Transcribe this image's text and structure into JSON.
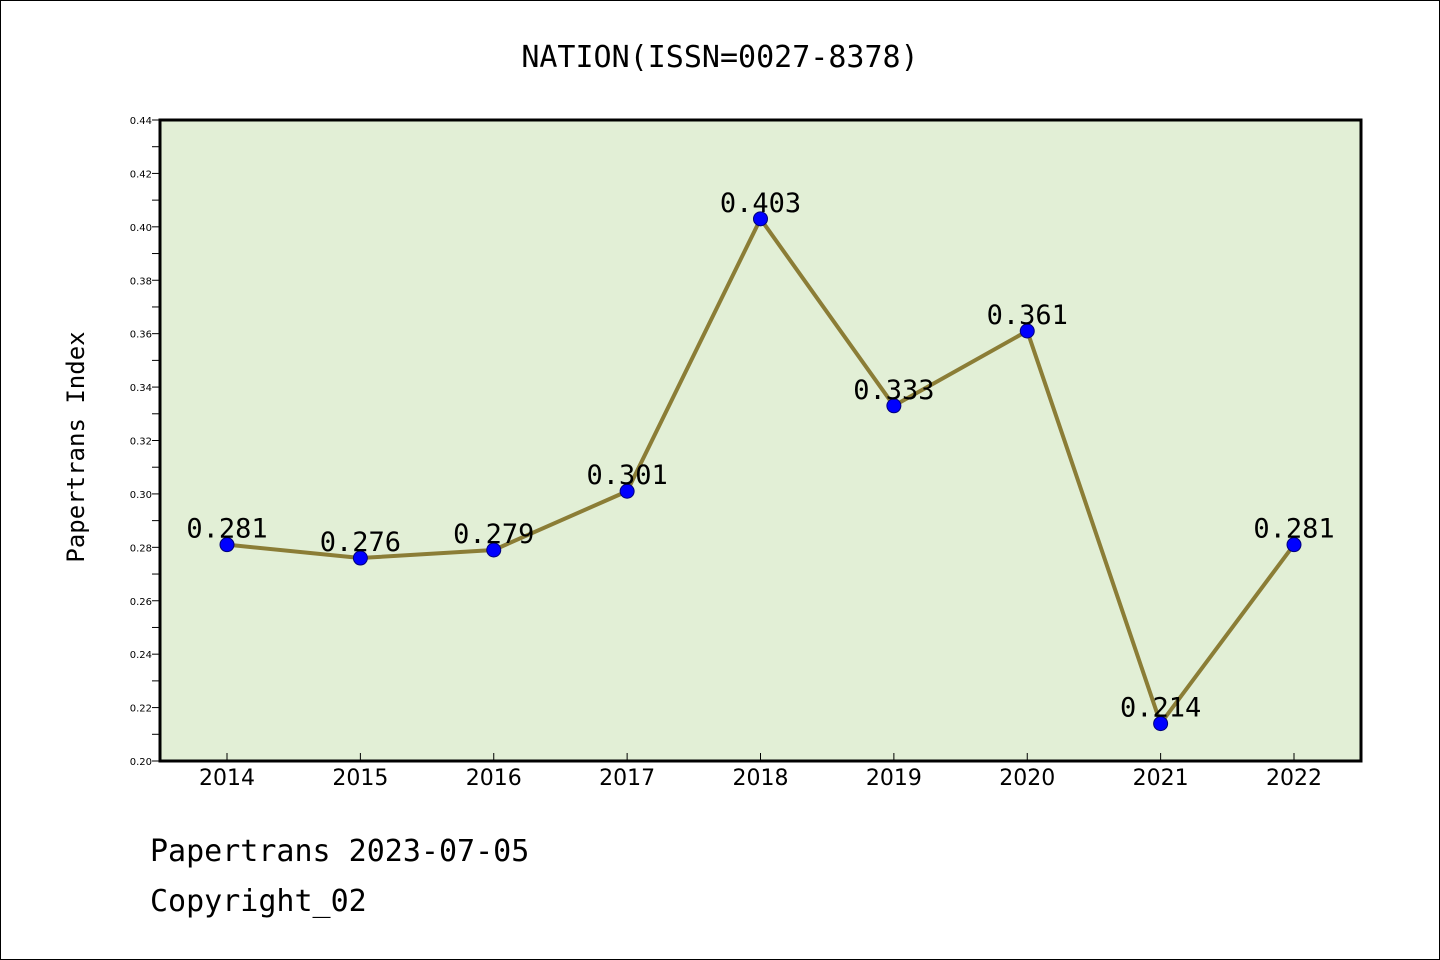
{
  "chart_data": {
    "type": "line",
    "title": "NATION(ISSN=0027-8378)",
    "xlabel": "",
    "ylabel": "Papertrans Index",
    "categories": [
      "2014",
      "2015",
      "2016",
      "2017",
      "2018",
      "2019",
      "2020",
      "2021",
      "2022"
    ],
    "series": [
      {
        "values": [
          0.281,
          0.276,
          0.279,
          0.301,
          0.403,
          0.333,
          0.361,
          0.214,
          0.281
        ],
        "data_labels": [
          "0.281",
          "0.276",
          "0.279",
          "0.301",
          "0.403",
          "0.333",
          "0.361",
          "0.214",
          "0.281"
        ]
      }
    ],
    "ylim": [
      0.2,
      0.44
    ],
    "y_ticks": [
      "0.20",
      "0.22",
      "0.24",
      "0.26",
      "0.28",
      "0.30",
      "0.32",
      "0.34",
      "0.36",
      "0.38",
      "0.40",
      "0.42",
      "0.44"
    ],
    "grid": false,
    "legend": "none",
    "colors": {
      "plot_background": "#e2efd6",
      "line": "#8b7d36",
      "marker": "#0000ff"
    }
  },
  "footer": {
    "line1": "Papertrans 2023-07-05",
    "line2": "Copyright_02"
  }
}
